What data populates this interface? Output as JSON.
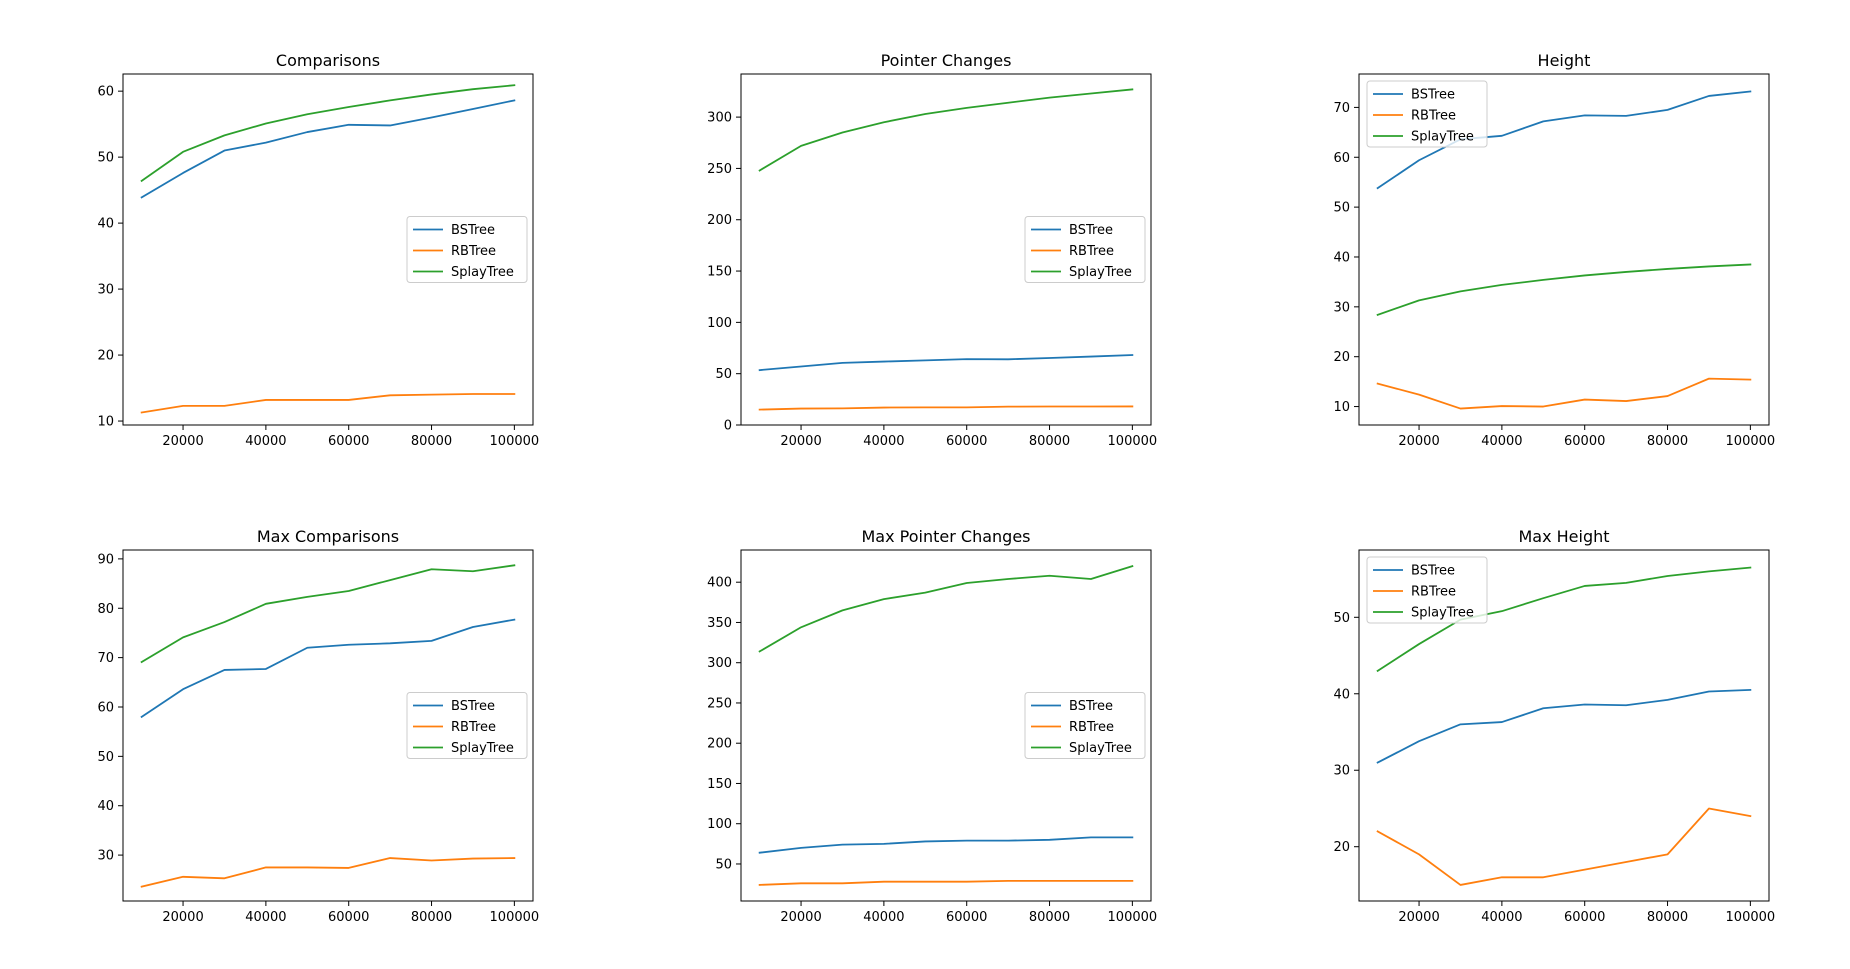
{
  "chart_data": [
    {
      "type": "line",
      "title": "Comparisons",
      "x": [
        10000,
        20000,
        30000,
        40000,
        50000,
        60000,
        70000,
        80000,
        90000,
        100000
      ],
      "xticks": [
        20000,
        40000,
        60000,
        80000,
        100000
      ],
      "xlim": [
        5500,
        104500
      ],
      "ylim": [
        9.4,
        62.6
      ],
      "yticks": [
        10,
        20,
        30,
        40,
        50,
        60
      ],
      "legend": "center-right",
      "series": [
        {
          "name": "BSTree",
          "color": "#1f77b4",
          "values": [
            43.9,
            47.6,
            51.0,
            52.2,
            53.8,
            54.9,
            54.8,
            56.0,
            57.3,
            58.6
          ]
        },
        {
          "name": "RBTree",
          "color": "#ff7f0e",
          "values": [
            11.3,
            12.3,
            12.3,
            13.2,
            13.2,
            13.2,
            13.9,
            14.0,
            14.1,
            14.1
          ]
        },
        {
          "name": "SplayTree",
          "color": "#2ca02c",
          "values": [
            46.4,
            50.8,
            53.3,
            55.1,
            56.5,
            57.6,
            58.6,
            59.5,
            60.3,
            60.9
          ]
        }
      ]
    },
    {
      "type": "line",
      "title": "Pointer Changes",
      "x": [
        10000,
        20000,
        30000,
        40000,
        50000,
        60000,
        70000,
        80000,
        90000,
        100000
      ],
      "xticks": [
        20000,
        40000,
        60000,
        80000,
        100000
      ],
      "xlim": [
        5500,
        104500
      ],
      "ylim": [
        0,
        342
      ],
      "yticks": [
        0,
        50,
        100,
        150,
        200,
        250,
        300
      ],
      "legend": "center-right",
      "series": [
        {
          "name": "BSTree",
          "color": "#1f77b4",
          "values": [
            53.5,
            57.0,
            60.5,
            61.8,
            63.0,
            64.2,
            64.0,
            65.3,
            66.7,
            68.2
          ]
        },
        {
          "name": "RBTree",
          "color": "#ff7f0e",
          "values": [
            15.0,
            16.0,
            16.2,
            17.0,
            17.2,
            17.2,
            17.9,
            18.0,
            18.0,
            18.1
          ]
        },
        {
          "name": "SplayTree",
          "color": "#2ca02c",
          "values": [
            248,
            272,
            285,
            295,
            303,
            309,
            314,
            319,
            323,
            327
          ]
        }
      ]
    },
    {
      "type": "line",
      "title": "Height",
      "x": [
        10000,
        20000,
        30000,
        40000,
        50000,
        60000,
        70000,
        80000,
        90000,
        100000
      ],
      "xticks": [
        20000,
        40000,
        60000,
        80000,
        100000
      ],
      "xlim": [
        5500,
        104500
      ],
      "ylim": [
        6.3,
        76.7
      ],
      "yticks": [
        10,
        20,
        30,
        40,
        50,
        60,
        70
      ],
      "legend": "upper-left",
      "series": [
        {
          "name": "BSTree",
          "color": "#1f77b4",
          "values": [
            53.8,
            59.4,
            63.6,
            64.3,
            67.2,
            68.4,
            68.3,
            69.5,
            72.3,
            73.2
          ]
        },
        {
          "name": "RBTree",
          "color": "#ff7f0e",
          "values": [
            14.6,
            12.4,
            9.6,
            10.1,
            10.0,
            11.4,
            11.1,
            12.1,
            15.6,
            15.4
          ]
        },
        {
          "name": "SplayTree",
          "color": "#2ca02c",
          "values": [
            28.4,
            31.3,
            33.1,
            34.4,
            35.4,
            36.3,
            37.0,
            37.6,
            38.1,
            38.5
          ]
        }
      ]
    },
    {
      "type": "line",
      "title": "Max Comparisons",
      "x": [
        10000,
        20000,
        30000,
        40000,
        50000,
        60000,
        70000,
        80000,
        90000,
        100000
      ],
      "xticks": [
        20000,
        40000,
        60000,
        80000,
        100000
      ],
      "xlim": [
        5500,
        104500
      ],
      "ylim": [
        20.7,
        91.8
      ],
      "yticks": [
        30,
        40,
        50,
        60,
        70,
        80,
        90
      ],
      "legend": "center-right",
      "series": [
        {
          "name": "BSTree",
          "color": "#1f77b4",
          "values": [
            58.0,
            63.6,
            67.5,
            67.7,
            72.0,
            72.6,
            72.9,
            73.4,
            76.2,
            77.7
          ]
        },
        {
          "name": "RBTree",
          "color": "#ff7f0e",
          "values": [
            23.6,
            25.6,
            25.3,
            27.5,
            27.5,
            27.4,
            29.4,
            28.9,
            29.3,
            29.4
          ]
        },
        {
          "name": "SplayTree",
          "color": "#2ca02c",
          "values": [
            69.1,
            74.1,
            77.2,
            80.9,
            82.3,
            83.5,
            85.7,
            87.9,
            87.5,
            88.7
          ]
        }
      ]
    },
    {
      "type": "line",
      "title": "Max Pointer Changes",
      "x": [
        10000,
        20000,
        30000,
        40000,
        50000,
        60000,
        70000,
        80000,
        90000,
        100000
      ],
      "xticks": [
        20000,
        40000,
        60000,
        80000,
        100000
      ],
      "xlim": [
        5500,
        104500
      ],
      "ylim": [
        4,
        440
      ],
      "yticks": [
        50,
        100,
        150,
        200,
        250,
        300,
        350,
        400
      ],
      "legend": "center-right",
      "series": [
        {
          "name": "BSTree",
          "color": "#1f77b4",
          "values": [
            64,
            70,
            74,
            75,
            78,
            79,
            79,
            80,
            83,
            83
          ]
        },
        {
          "name": "RBTree",
          "color": "#ff7f0e",
          "values": [
            24,
            26,
            26,
            28,
            28,
            28,
            29,
            29,
            29,
            29
          ]
        },
        {
          "name": "SplayTree",
          "color": "#2ca02c",
          "values": [
            314,
            344,
            365,
            379,
            387,
            399,
            404,
            408,
            404,
            420
          ]
        }
      ]
    },
    {
      "type": "line",
      "title": "Max Height",
      "x": [
        10000,
        20000,
        30000,
        40000,
        50000,
        60000,
        70000,
        80000,
        90000,
        100000
      ],
      "xticks": [
        20000,
        40000,
        60000,
        80000,
        100000
      ],
      "xlim": [
        5500,
        104500
      ],
      "ylim": [
        12.9,
        58.8
      ],
      "yticks": [
        20,
        30,
        40,
        50
      ],
      "legend": "upper-left",
      "series": [
        {
          "name": "BSTree",
          "color": "#1f77b4",
          "values": [
            31,
            33.8,
            36,
            36.3,
            38.1,
            38.6,
            38.5,
            39.2,
            40.3,
            40.5
          ]
        },
        {
          "name": "RBTree",
          "color": "#ff7f0e",
          "values": [
            22,
            19,
            15,
            16,
            16,
            17,
            18,
            19,
            25,
            24
          ]
        },
        {
          "name": "SplayTree",
          "color": "#2ca02c",
          "values": [
            43,
            46.5,
            49.7,
            50.8,
            52.5,
            54.1,
            54.5,
            55.4,
            56,
            56.5
          ]
        }
      ]
    }
  ]
}
